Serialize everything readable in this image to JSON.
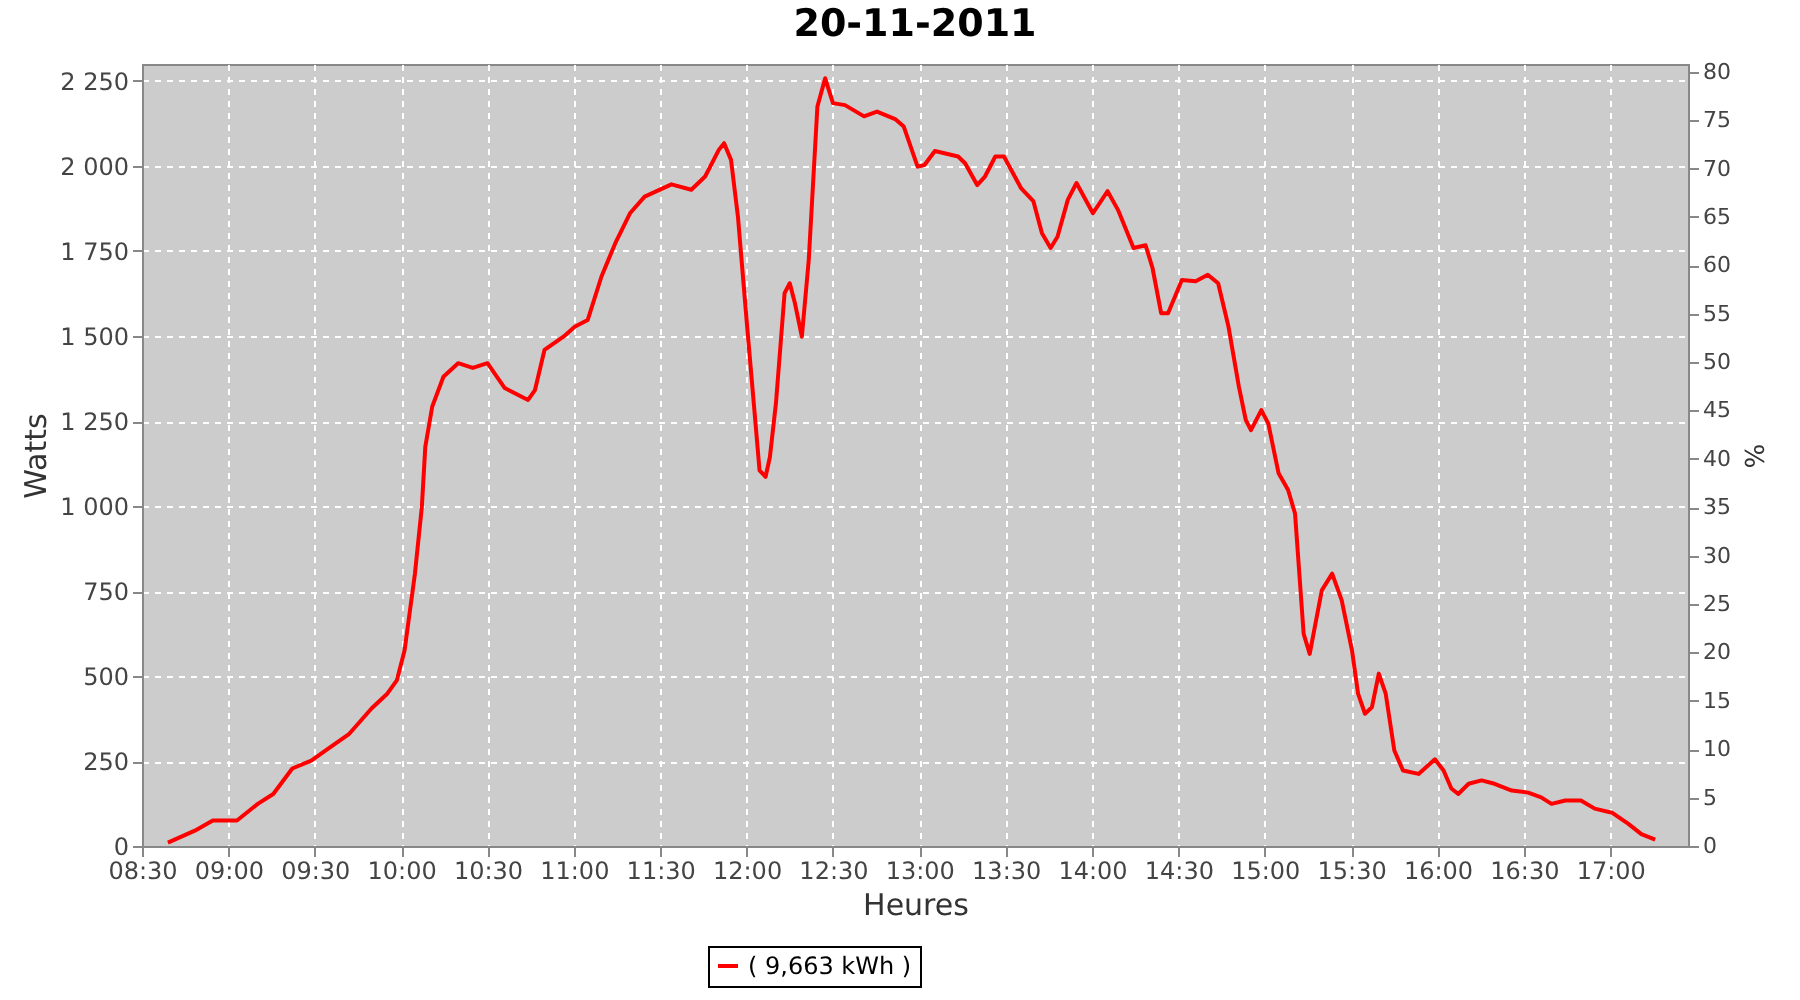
{
  "chart_data": {
    "type": "line",
    "title": "20-11-2011",
    "xlabel": "Heures",
    "ylabel": "Watts",
    "y2label": "%",
    "xlim": [
      8.5,
      17.45
    ],
    "xticks": [
      {
        "value": 8.5,
        "label": "08:30"
      },
      {
        "value": 9,
        "label": "09:00"
      },
      {
        "value": 9.5,
        "label": "09:30"
      },
      {
        "value": 10,
        "label": "10:00"
      },
      {
        "value": 10.5,
        "label": "10:30"
      },
      {
        "value": 11,
        "label": "11:00"
      },
      {
        "value": 11.5,
        "label": "11:30"
      },
      {
        "value": 12,
        "label": "12:00"
      },
      {
        "value": 12.5,
        "label": "12:30"
      },
      {
        "value": 13,
        "label": "13:00"
      },
      {
        "value": 13.5,
        "label": "13:30"
      },
      {
        "value": 14,
        "label": "14:00"
      },
      {
        "value": 14.5,
        "label": "14:30"
      },
      {
        "value": 15,
        "label": "15:00"
      },
      {
        "value": 15.5,
        "label": "15:30"
      },
      {
        "value": 16,
        "label": "16:00"
      },
      {
        "value": 16.5,
        "label": "16:30"
      },
      {
        "value": 17,
        "label": "17:00"
      }
    ],
    "ylim": [
      0,
      2300
    ],
    "yticks": [
      0,
      250,
      500,
      750,
      {
        "value": 1000,
        "label": "1 000"
      },
      {
        "value": 1250,
        "label": "1 250"
      },
      {
        "value": 1500,
        "label": "1 500"
      },
      {
        "value": 1750,
        "label": "1 750"
      },
      {
        "value": 2000,
        "label": "2 000"
      },
      {
        "value": 2250,
        "label": "2 250"
      }
    ],
    "y2lim": [
      0,
      80.8
    ],
    "y2ticks": [
      0,
      5,
      10,
      15,
      20,
      25,
      30,
      35,
      40,
      45,
      50,
      55,
      60,
      65,
      70,
      75,
      80
    ],
    "grid": true,
    "legend": "bottom",
    "line_style": "solid",
    "marker": "none",
    "series": [
      {
        "name": "( 9,663 kWh )",
        "color": "#ff0000",
        "x": [
          8.65,
          8.806,
          8.91,
          9.05,
          9.17,
          9.26,
          9.37,
          9.48,
          9.58,
          9.7,
          9.83,
          9.92,
          9.975,
          10.02,
          10.08,
          10.12,
          10.14,
          10.18,
          10.245,
          10.33,
          10.415,
          10.5,
          10.6,
          10.735,
          10.775,
          10.83,
          10.94,
          11.005,
          11.08,
          11.16,
          11.24,
          11.325,
          11.41,
          11.565,
          11.68,
          11.76,
          11.84,
          11.87,
          11.91,
          11.95,
          12.0,
          12.04,
          12.075,
          12.11,
          12.135,
          12.17,
          12.22,
          12.25,
          12.28,
          12.32,
          12.36,
          12.41,
          12.455,
          12.5,
          12.57,
          12.68,
          12.755,
          12.86,
          12.91,
          12.99,
          13.03,
          13.09,
          13.225,
          13.265,
          13.335,
          13.38,
          13.44,
          13.49,
          13.59,
          13.66,
          13.71,
          13.76,
          13.8,
          13.86,
          13.91,
          14.005,
          14.09,
          14.15,
          14.24,
          14.31,
          14.35,
          14.4,
          14.44,
          14.52,
          14.6,
          14.67,
          14.73,
          14.79,
          14.85,
          14.89,
          14.92,
          14.98,
          15.02,
          15.08,
          15.135,
          15.175,
          15.225,
          15.26,
          15.33,
          15.39,
          15.445,
          15.505,
          15.54,
          15.58,
          15.62,
          15.66,
          15.7,
          15.75,
          15.8,
          15.89,
          15.985,
          16.035,
          16.08,
          16.12,
          16.18,
          16.255,
          16.33,
          16.43,
          16.525,
          16.6,
          16.66,
          16.74,
          16.83,
          16.91,
          17.01,
          17.105,
          17.18,
          17.26
        ],
        "values": [
          10,
          45,
          75,
          75,
          124,
          153,
          228,
          251,
          287,
          330,
          405,
          448,
          487,
          575,
          801,
          997,
          1174,
          1292,
          1380,
          1420,
          1406,
          1420,
          1347,
          1312,
          1341,
          1459,
          1498,
          1527,
          1547,
          1675,
          1773,
          1861,
          1910,
          1946,
          1930,
          1969,
          2048,
          2067,
          2018,
          1851,
          1547,
          1312,
          1105,
          1086,
          1144,
          1302,
          1626,
          1655,
          1596,
          1498,
          1724,
          2175,
          2258,
          2185,
          2179,
          2146,
          2160,
          2138,
          2116,
          1998,
          2003,
          2044,
          2028,
          2008,
          1944,
          1969,
          2028,
          2028,
          1934,
          1897,
          1802,
          1759,
          1792,
          1901,
          1950,
          1861,
          1926,
          1871,
          1759,
          1767,
          1700,
          1567,
          1567,
          1665,
          1661,
          1680,
          1655,
          1527,
          1351,
          1253,
          1223,
          1282,
          1243,
          1096,
          1047,
          978,
          624,
          565,
          752,
          801,
          723,
          575,
          448,
          389,
          408,
          507,
          448,
          281,
          222,
          212,
          255,
          222,
          169,
          153,
          183,
          193,
          183,
          163,
          157,
          143,
          124,
          134,
          134,
          110,
          98,
          65,
          35,
          19
        ]
      }
    ]
  }
}
